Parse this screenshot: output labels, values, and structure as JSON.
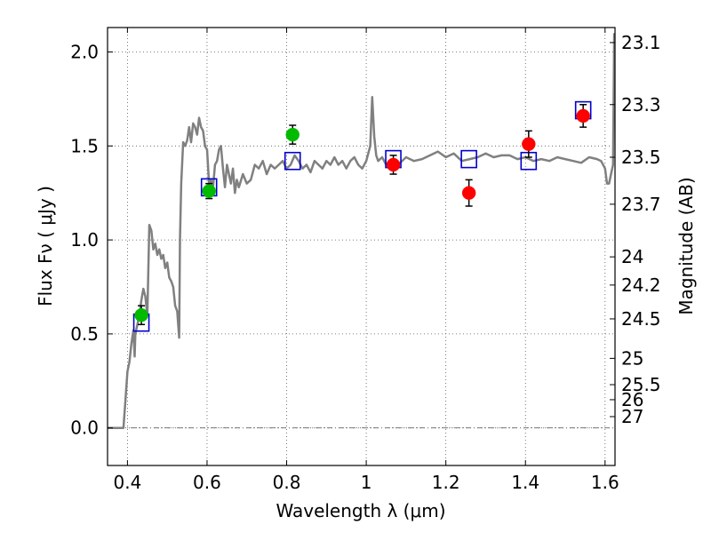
{
  "chart_data": {
    "type": "scatter",
    "xlabel": "Wavelength  λ (μm)",
    "ylabel": "Flux  Fν  ( μJy )",
    "ylabel_right": "Magnitude (AB)",
    "xlim": [
      0.35,
      1.625
    ],
    "ylim": [
      -0.2,
      2.13
    ],
    "grid": true,
    "x_ticks": [
      0.4,
      0.6,
      0.8,
      1.0,
      1.2,
      1.4,
      1.6
    ],
    "x_tick_labels": [
      "0.4",
      "0.6",
      "0.8",
      "1",
      "1.2",
      "1.4",
      "1.6"
    ],
    "y_ticks": [
      0.0,
      0.5,
      1.0,
      1.5,
      2.0
    ],
    "y_tick_labels": [
      "0.0",
      "0.5",
      "1.0",
      "1.5",
      "2.0"
    ],
    "right_ticks": [
      {
        "label": "23.1",
        "flux": 2.05
      },
      {
        "label": "23.3",
        "flux": 1.72
      },
      {
        "label": "23.5",
        "flux": 1.44
      },
      {
        "label": "23.7",
        "flux": 1.19
      },
      {
        "label": "24",
        "flux": 0.91
      },
      {
        "label": "24.2",
        "flux": 0.76
      },
      {
        "label": "24.5",
        "flux": 0.58
      },
      {
        "label": "25",
        "flux": 0.37
      },
      {
        "label": "25.5",
        "flux": 0.23
      },
      {
        "label": "26",
        "flux": 0.15
      },
      {
        "label": "27",
        "flux": 0.06
      }
    ],
    "series": [
      {
        "kind": "sed-model",
        "color": "#808080",
        "x": [
          0.35,
          0.39,
          0.395,
          0.4,
          0.405,
          0.41,
          0.415,
          0.418,
          0.42,
          0.425,
          0.43,
          0.435,
          0.44,
          0.445,
          0.45,
          0.455,
          0.46,
          0.465,
          0.47,
          0.475,
          0.48,
          0.485,
          0.49,
          0.495,
          0.5,
          0.505,
          0.51,
          0.515,
          0.52,
          0.525,
          0.53,
          0.532,
          0.535,
          0.54,
          0.545,
          0.55,
          0.555,
          0.56,
          0.565,
          0.57,
          0.575,
          0.58,
          0.585,
          0.59,
          0.595,
          0.6,
          0.605,
          0.61,
          0.615,
          0.62,
          0.625,
          0.63,
          0.635,
          0.64,
          0.645,
          0.65,
          0.655,
          0.66,
          0.665,
          0.67,
          0.675,
          0.68,
          0.69,
          0.7,
          0.71,
          0.72,
          0.73,
          0.74,
          0.75,
          0.76,
          0.77,
          0.78,
          0.79,
          0.8,
          0.81,
          0.82,
          0.83,
          0.84,
          0.85,
          0.86,
          0.87,
          0.88,
          0.89,
          0.9,
          0.91,
          0.92,
          0.93,
          0.94,
          0.95,
          0.96,
          0.97,
          0.98,
          0.99,
          1.0,
          1.01,
          1.015,
          1.02,
          1.025,
          1.03,
          1.04,
          1.05,
          1.06,
          1.08,
          1.1,
          1.12,
          1.14,
          1.16,
          1.18,
          1.2,
          1.22,
          1.24,
          1.26,
          1.28,
          1.3,
          1.32,
          1.34,
          1.36,
          1.38,
          1.4,
          1.42,
          1.44,
          1.46,
          1.48,
          1.5,
          1.52,
          1.54,
          1.56,
          1.58,
          1.59,
          1.6,
          1.605,
          1.61,
          1.615,
          1.62,
          1.623
        ],
        "y": [
          0.0,
          0.0,
          0.15,
          0.3,
          0.35,
          0.45,
          0.52,
          0.38,
          0.5,
          0.55,
          0.6,
          0.68,
          0.74,
          0.7,
          0.6,
          1.08,
          1.05,
          0.95,
          0.98,
          0.92,
          0.95,
          0.9,
          0.92,
          0.85,
          0.88,
          0.8,
          0.78,
          0.75,
          0.65,
          0.62,
          0.48,
          1.0,
          1.3,
          1.52,
          1.5,
          1.53,
          1.6,
          1.52,
          1.62,
          1.6,
          1.56,
          1.65,
          1.6,
          1.58,
          1.5,
          1.48,
          1.3,
          1.32,
          1.28,
          1.4,
          1.42,
          1.48,
          1.5,
          1.38,
          1.28,
          1.4,
          1.35,
          1.3,
          1.38,
          1.25,
          1.32,
          1.28,
          1.35,
          1.3,
          1.32,
          1.4,
          1.38,
          1.42,
          1.35,
          1.4,
          1.38,
          1.4,
          1.42,
          1.38,
          1.4,
          1.45,
          1.42,
          1.38,
          1.4,
          1.36,
          1.42,
          1.4,
          1.38,
          1.42,
          1.4,
          1.44,
          1.4,
          1.42,
          1.38,
          1.42,
          1.44,
          1.4,
          1.38,
          1.42,
          1.5,
          1.76,
          1.55,
          1.45,
          1.42,
          1.44,
          1.4,
          1.42,
          1.4,
          1.44,
          1.42,
          1.43,
          1.45,
          1.47,
          1.44,
          1.46,
          1.42,
          1.43,
          1.44,
          1.46,
          1.44,
          1.45,
          1.45,
          1.43,
          1.44,
          1.42,
          1.43,
          1.42,
          1.44,
          1.43,
          1.42,
          1.41,
          1.44,
          1.43,
          1.42,
          1.38,
          1.3,
          1.3,
          1.35,
          1.4,
          2.1
        ]
      },
      {
        "kind": "synthetic-photometry",
        "marker": "open-square",
        "color": "#0000cc",
        "x": [
          0.435,
          0.605,
          0.815,
          1.068,
          1.258,
          1.408,
          1.545
        ],
        "y": [
          0.56,
          1.28,
          1.42,
          1.43,
          1.43,
          1.42,
          1.69
        ]
      },
      {
        "kind": "photometry",
        "marker": "filled-circle",
        "color": "#00bb00",
        "x": [
          0.435,
          0.605,
          0.815
        ],
        "y": [
          0.6,
          1.26,
          1.56
        ],
        "yerr": [
          0.05,
          0.04,
          0.05
        ]
      },
      {
        "kind": "photometry",
        "marker": "filled-circle",
        "color": "#ff0000",
        "x": [
          1.068,
          1.258,
          1.408,
          1.545
        ],
        "y": [
          1.4,
          1.25,
          1.51,
          1.66
        ],
        "yerr": [
          0.05,
          0.07,
          0.07,
          0.06
        ]
      }
    ]
  }
}
